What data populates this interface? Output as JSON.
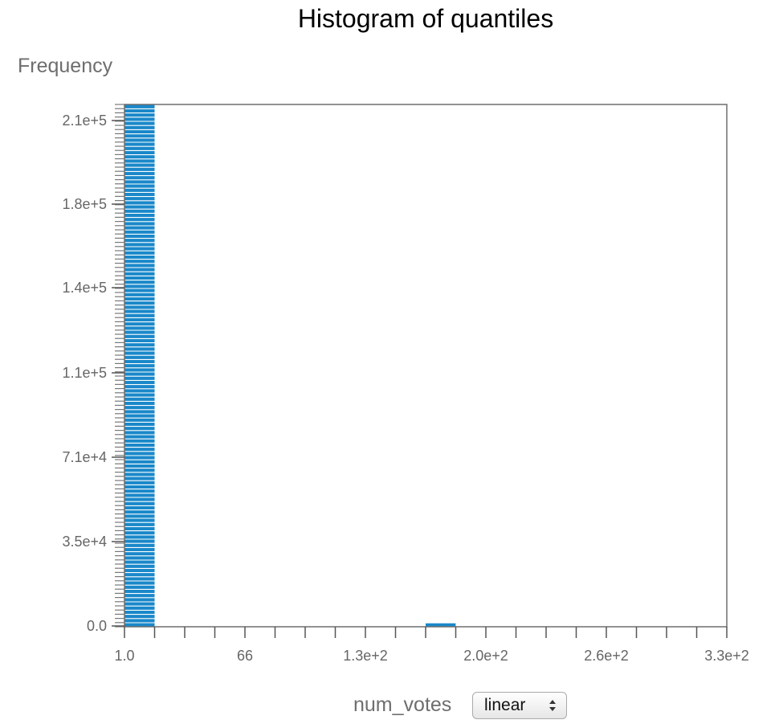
{
  "chart_data": {
    "type": "bar",
    "title": "Histogram of quantiles",
    "ylabel": "Frequency",
    "xlabel": "num_votes",
    "x_tick_labels": [
      "1.0",
      "66",
      "1.3e+2",
      "2.0e+2",
      "2.6e+2",
      "3.3e+2"
    ],
    "y_tick_labels": [
      "0.0",
      "3.5e+4",
      "7.1e+4",
      "1.1e+5",
      "1.4e+5",
      "1.8e+5",
      "2.1e+5"
    ],
    "xlim": [
      1,
      330
    ],
    "ylim": [
      0,
      212000
    ],
    "bins": [
      {
        "x0": 1,
        "x1": 17.45,
        "value": 212000
      },
      {
        "x0": 165.5,
        "x1": 181.9,
        "value": 1400
      }
    ],
    "bar_color": "#1a88c9",
    "grid": false
  },
  "controls": {
    "scale_select": {
      "value": "linear",
      "options": [
        "linear"
      ]
    }
  }
}
